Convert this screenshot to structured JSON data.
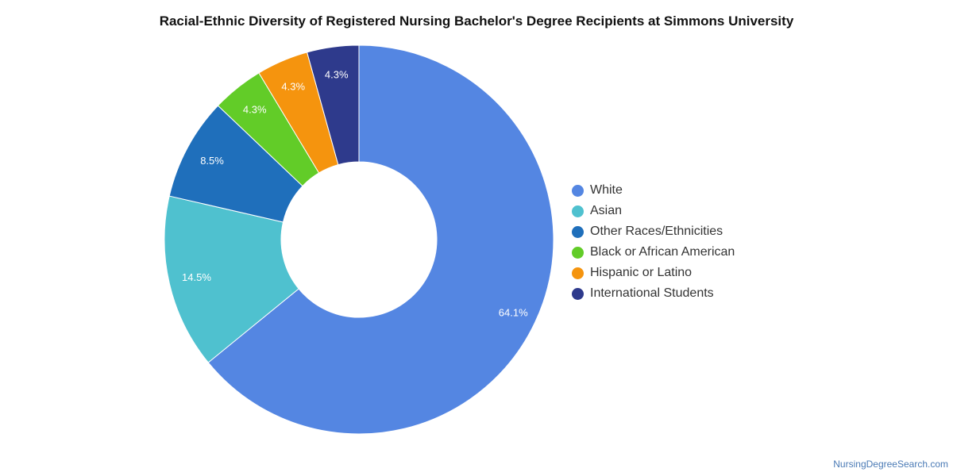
{
  "chart_data": {
    "type": "pie",
    "variant": "donut",
    "title": "Racial-Ethnic Diversity of Registered Nursing Bachelor's Degree Recipients at Simmons University",
    "legend_position": "right",
    "slices": [
      {
        "name": "White",
        "value": 64.1,
        "label": "64.1%",
        "color": "#5486e2"
      },
      {
        "name": "Asian",
        "value": 14.5,
        "label": "14.5%",
        "color": "#4fc1cf"
      },
      {
        "name": "Other Races/Ethnicities",
        "value": 8.5,
        "label": "8.5%",
        "color": "#1f6fbb"
      },
      {
        "name": "Black or African American",
        "value": 4.3,
        "label": "4.3%",
        "color": "#62cc28"
      },
      {
        "name": "Hispanic or Latino",
        "value": 4.3,
        "label": "4.3%",
        "color": "#f5940e"
      },
      {
        "name": "International Students",
        "value": 4.3,
        "label": "4.3%",
        "color": "#2e3a8c"
      }
    ]
  },
  "footer": {
    "source": "NursingDegreeSearch.com"
  }
}
